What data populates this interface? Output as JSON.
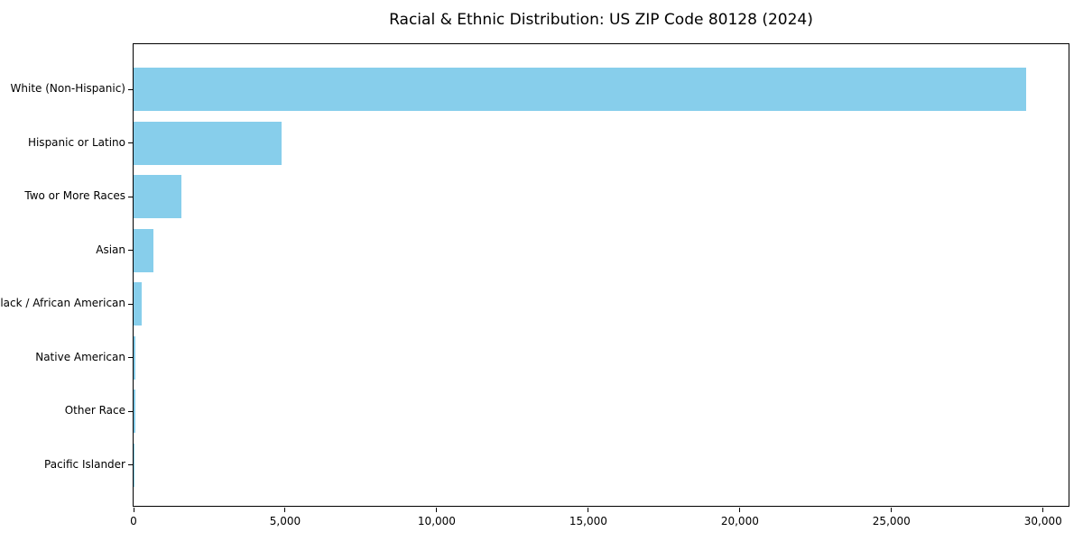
{
  "colors": {
    "bar": "#87CEEB",
    "spine": "#000000",
    "text": "#000000",
    "background": "#ffffff"
  },
  "chart_data": {
    "type": "bar",
    "orientation": "horizontal",
    "title": "Racial & Ethnic Distribution: US ZIP Code 80128 (2024)",
    "categories": [
      "White (Non-Hispanic)",
      "Hispanic or Latino",
      "Two or More Races",
      "Asian",
      "Black / African American",
      "Native American",
      "Other Race",
      "Pacific Islander"
    ],
    "values": [
      29430,
      4880,
      1580,
      650,
      260,
      60,
      45,
      15
    ],
    "xlabel": "",
    "ylabel": "",
    "xlim": [
      0,
      30900
    ],
    "xticks": [
      0,
      5000,
      10000,
      15000,
      20000,
      25000,
      30000
    ],
    "xtick_labels": [
      "0",
      "5,000",
      "10,000",
      "15,000",
      "20,000",
      "25,000",
      "30,000"
    ],
    "grid": false,
    "legend": null,
    "bar_color": "#87CEEB"
  }
}
